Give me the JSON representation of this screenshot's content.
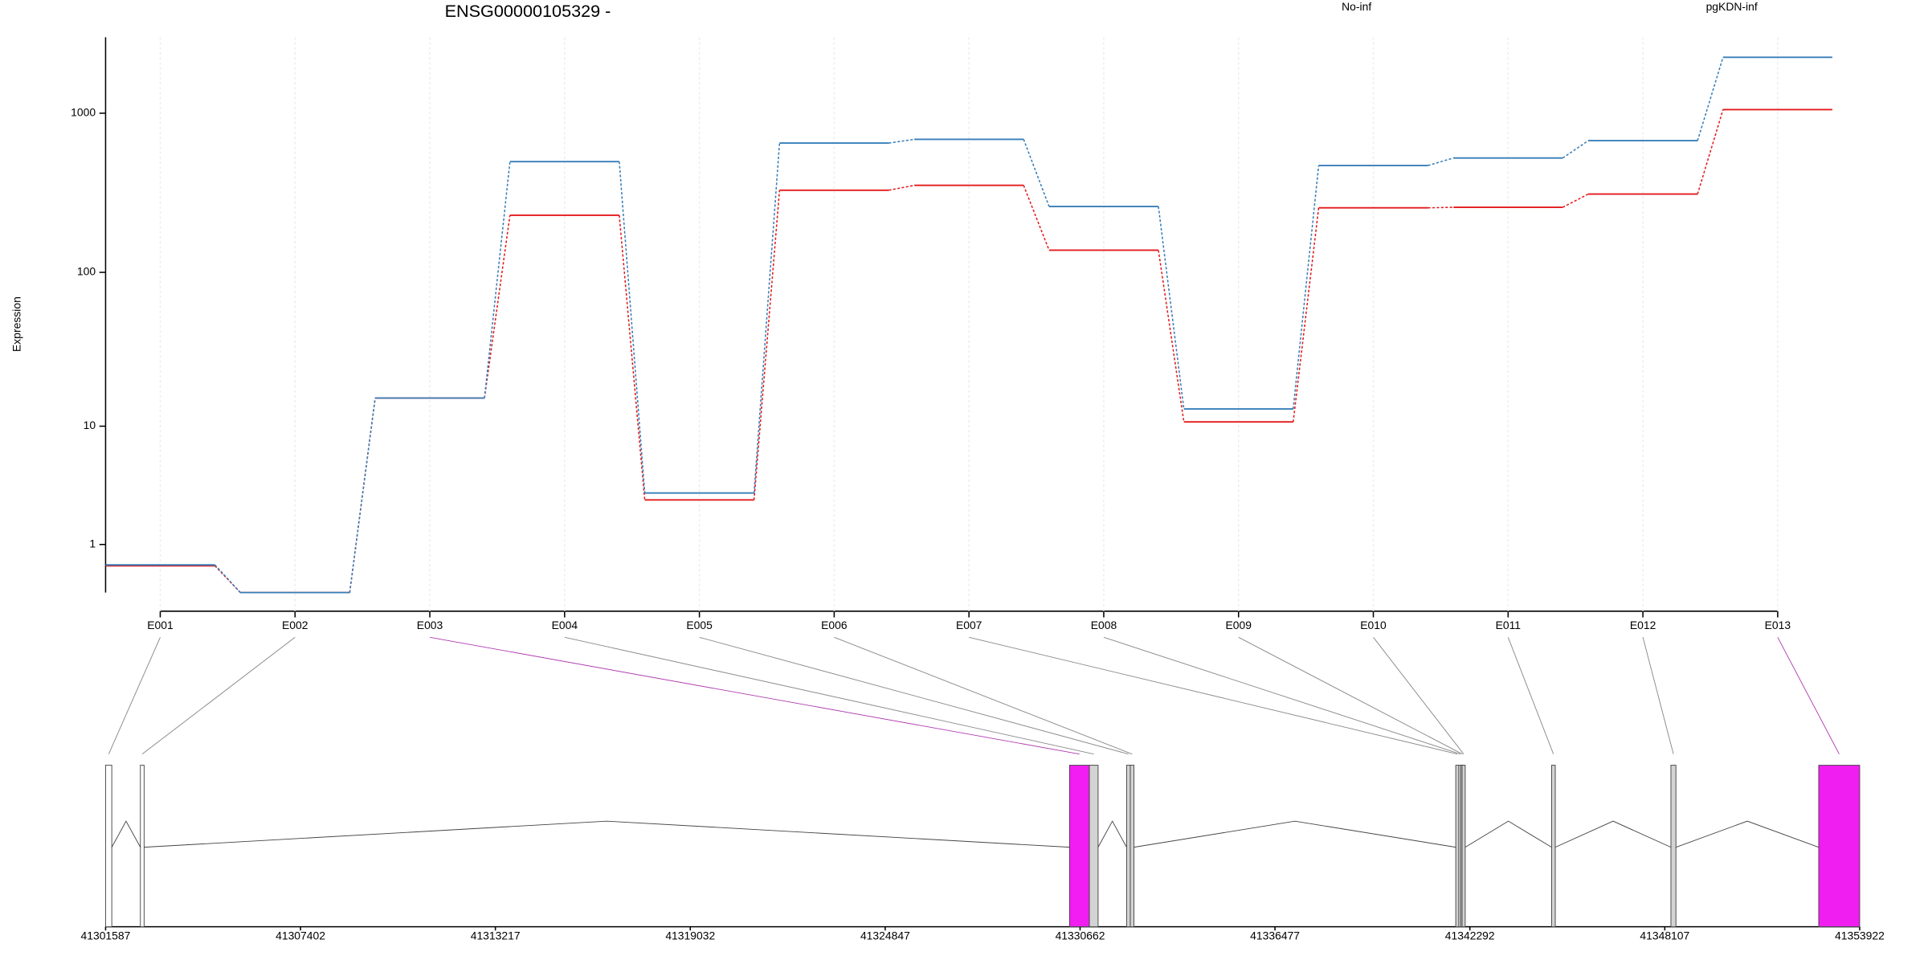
{
  "chart_data": [
    {
      "type": "line",
      "title": "ENSG00000105329 -",
      "y_label": "Expression",
      "categories": [
        "E001",
        "E002",
        "E003",
        "E004",
        "E005",
        "E006",
        "E007",
        "E008",
        "E009",
        "E010",
        "E011",
        "E012",
        "E013"
      ],
      "series": [
        {
          "name": "No-inf",
          "color": "#e41a1c",
          "values": [
            0.47,
            0,
            15.5,
            229,
            2.8,
            329,
            353,
            138,
            10.7,
            255,
            257,
            311,
            1054
          ]
        },
        {
          "name": "pgKDN-inf",
          "color": "#377eb8",
          "values": [
            0.49,
            0,
            15.5,
            497,
            3.2,
            650,
            686,
            260,
            13.1,
            470,
            524,
            673,
            2240
          ]
        }
      ],
      "yscale": "log10(x+1)",
      "ylim": [
        0,
        2990
      ],
      "yticks": [
        1,
        10,
        100,
        1000
      ],
      "grid": true,
      "legend": "top"
    },
    {
      "type": "gene-model",
      "exons": [
        {
          "start": 41301587,
          "end": 41301772,
          "color": "#ffffff"
        },
        {
          "start": 41302625,
          "end": 41302736,
          "color": "#ffffff"
        },
        {
          "start": 41330347,
          "end": 41330940,
          "color": "#f01ef0"
        },
        {
          "start": 41330940,
          "end": 41331200,
          "color": "#d3d3d3"
        },
        {
          "start": 41332050,
          "end": 41332160,
          "color": "#d3d3d3"
        },
        {
          "start": 41332160,
          "end": 41332270,
          "color": "#d3d3d3"
        },
        {
          "start": 41341870,
          "end": 41341960,
          "color": "#d3d3d3"
        },
        {
          "start": 41341960,
          "end": 41342020,
          "color": "#d3d3d3"
        },
        {
          "start": 41342020,
          "end": 41342060,
          "color": "#d3d3d3"
        },
        {
          "start": 41342060,
          "end": 41342110,
          "color": "#d3d3d3"
        },
        {
          "start": 41344730,
          "end": 41344840,
          "color": "#d3d3d3"
        },
        {
          "start": 41348290,
          "end": 41348440,
          "color": "#d3d3d3"
        },
        {
          "start": 41352700,
          "end": 41353922,
          "color": "#f01ef0"
        }
      ],
      "xlim": [
        41301587,
        41353922
      ],
      "xticks": [
        41301587,
        41307402,
        41313217,
        41319032,
        41324847,
        41330662,
        41336477,
        41342292,
        41348107,
        41353922
      ]
    }
  ]
}
